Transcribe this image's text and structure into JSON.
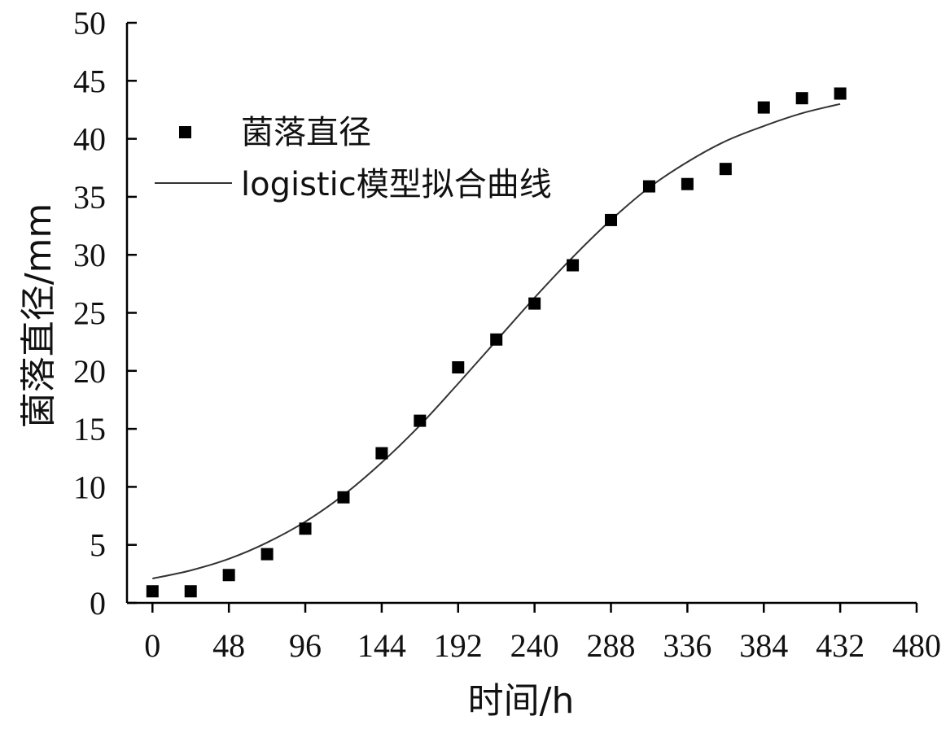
{
  "chart_data": {
    "type": "scatter",
    "xlabel": "时间/h",
    "ylabel": "菌落直径/mm",
    "xlim": [
      -16,
      480
    ],
    "ylim": [
      0,
      50
    ],
    "xticks": [
      0,
      48,
      96,
      144,
      192,
      240,
      288,
      336,
      384,
      432,
      480
    ],
    "yticks": [
      0,
      5,
      10,
      15,
      20,
      25,
      30,
      35,
      40,
      45,
      50
    ],
    "grid": false,
    "legend_position": "upper-left",
    "series": [
      {
        "name": "菌落直径",
        "kind": "scatter",
        "marker": "square",
        "color": "#000000",
        "points": [
          {
            "x": 0,
            "y": 1.0
          },
          {
            "x": 24,
            "y": 1.0
          },
          {
            "x": 48,
            "y": 2.4
          },
          {
            "x": 72,
            "y": 4.2
          },
          {
            "x": 96,
            "y": 6.4
          },
          {
            "x": 120,
            "y": 9.1
          },
          {
            "x": 144,
            "y": 12.9
          },
          {
            "x": 168,
            "y": 15.7
          },
          {
            "x": 192,
            "y": 20.3
          },
          {
            "x": 216,
            "y": 22.7
          },
          {
            "x": 240,
            "y": 25.8
          },
          {
            "x": 264,
            "y": 29.1
          },
          {
            "x": 288,
            "y": 33.0
          },
          {
            "x": 312,
            "y": 35.9
          },
          {
            "x": 336,
            "y": 36.1
          },
          {
            "x": 360,
            "y": 37.4
          },
          {
            "x": 384,
            "y": 42.7
          },
          {
            "x": 408,
            "y": 43.5
          },
          {
            "x": 432,
            "y": 43.9
          }
        ]
      },
      {
        "name": "logistic模型拟合曲线",
        "kind": "line",
        "color": "#333333",
        "points": [
          {
            "x": 0,
            "y": 2.1
          },
          {
            "x": 24,
            "y": 2.8
          },
          {
            "x": 48,
            "y": 3.8
          },
          {
            "x": 72,
            "y": 5.2
          },
          {
            "x": 96,
            "y": 7.0
          },
          {
            "x": 120,
            "y": 9.3
          },
          {
            "x": 144,
            "y": 12.1
          },
          {
            "x": 168,
            "y": 15.3
          },
          {
            "x": 192,
            "y": 18.9
          },
          {
            "x": 216,
            "y": 22.6
          },
          {
            "x": 240,
            "y": 26.3
          },
          {
            "x": 264,
            "y": 29.8
          },
          {
            "x": 288,
            "y": 33.0
          },
          {
            "x": 312,
            "y": 35.8
          },
          {
            "x": 336,
            "y": 38.0
          },
          {
            "x": 360,
            "y": 39.8
          },
          {
            "x": 384,
            "y": 41.1
          },
          {
            "x": 408,
            "y": 42.2
          },
          {
            "x": 432,
            "y": 43.0
          }
        ]
      }
    ]
  }
}
